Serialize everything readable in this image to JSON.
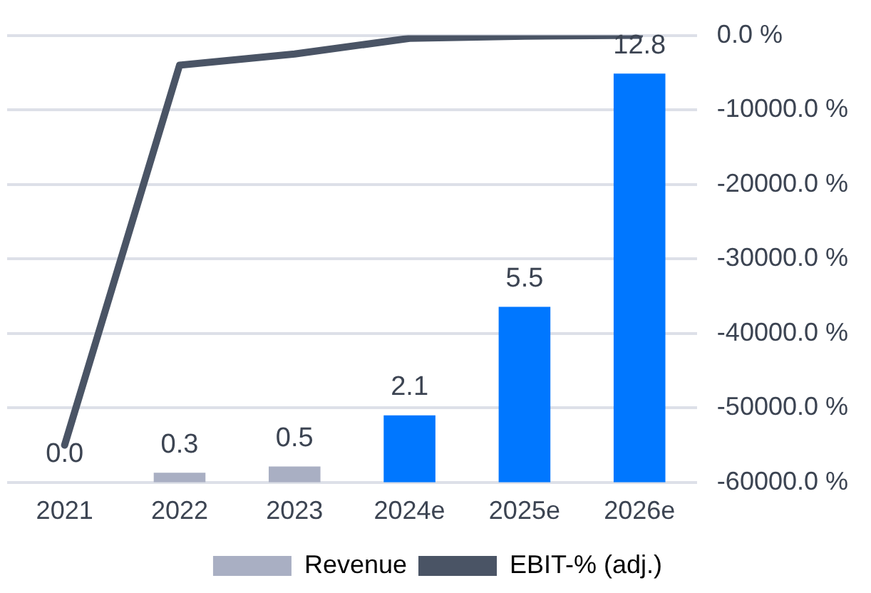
{
  "chart_data": {
    "type": "bar",
    "categories": [
      "2021",
      "2022",
      "2023",
      "2024e",
      "2025e",
      "2026e"
    ],
    "series": [
      {
        "name": "Revenue",
        "color": "#a9afc3",
        "colors": [
          "#a9afc3",
          "#a9afc3",
          "#a9afc3",
          "#0077ff",
          "#0077ff",
          "#0077ff"
        ],
        "values": [
          0.0,
          0.3,
          0.5,
          2.1,
          5.5,
          12.8
        ],
        "value_labels": [
          "0.0",
          "0.3",
          "0.5",
          "2.1",
          "5.5",
          "12.8"
        ]
      },
      {
        "name": "EBIT-% (adj.)",
        "type": "line",
        "axis": "y2",
        "color": "#4a5465",
        "values": [
          -55000,
          -4000,
          -2500,
          -400,
          -100,
          0
        ]
      }
    ],
    "ylim": [
      0,
      14
    ],
    "y2lim": [
      -60000,
      0
    ],
    "y2ticks": [
      {
        "value": 0,
        "label": "0.0 %"
      },
      {
        "value": -10000,
        "label": "-10000.0 %"
      },
      {
        "value": -20000,
        "label": "-20000.0 %"
      },
      {
        "value": -30000,
        "label": "-30000.0 %"
      },
      {
        "value": -40000,
        "label": "-40000.0 %"
      },
      {
        "value": -50000,
        "label": "-50000.0 %"
      },
      {
        "value": -60000,
        "label": "-60000.0 %"
      }
    ],
    "grid": "y2",
    "legend": "bottom",
    "marker": "none"
  }
}
